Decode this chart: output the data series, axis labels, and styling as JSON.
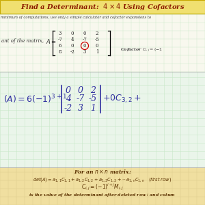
{
  "title": "Find a Determinant:  4 × 4 Using Cofactors",
  "title_bg": "#f0e070",
  "title_color": "#8b1a00",
  "grid_color_light": "#c8e8c8",
  "grid_color_dark": "#b0d4b0",
  "main_bg": "#f0f5e8",
  "header_bg": "#f0e070",
  "subtitle": "minimum of computations, use only a simple calculator and cofactor expansions to",
  "matrix_label": "ant of the matrix,",
  "matrix": [
    [
      3,
      0,
      0,
      2
    ],
    [
      -7,
      4,
      -7,
      -5
    ],
    [
      6,
      0,
      0,
      0
    ],
    [
      8,
      -2,
      3,
      1
    ]
  ],
  "circled_row": 2,
  "circled_col": 2,
  "submatrix": [
    [
      0,
      0,
      2
    ],
    [
      4,
      -7,
      -5
    ],
    [
      -2,
      3,
      1
    ]
  ],
  "footer_bg": "#f0dfa0",
  "ink_color": "#3030a0",
  "text_color": "#5a3000"
}
